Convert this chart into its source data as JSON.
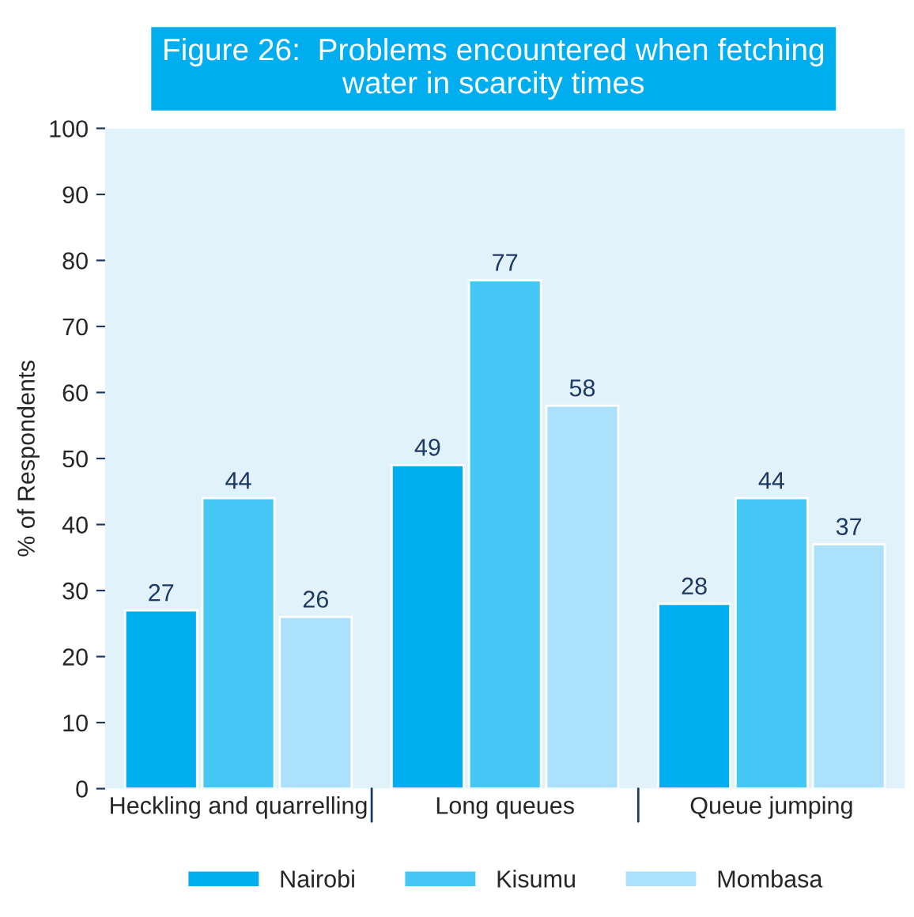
{
  "chart_data": {
    "type": "bar",
    "title": "Figure 26:  Problems encountered when fetching\nwater in scarcity times",
    "ylabel": "% of Respondents",
    "categories": [
      "Heckling and quarrelling",
      "Long queues",
      "Queue jumping"
    ],
    "series": [
      {
        "name": "Nairobi",
        "color": "#00aeef",
        "values": [
          27,
          49,
          28
        ]
      },
      {
        "name": "Kisumu",
        "color": "#45c8f5",
        "values": [
          44,
          77,
          44
        ]
      },
      {
        "name": "Mombasa",
        "color": "#abe1fa",
        "values": [
          26,
          58,
          37
        ]
      }
    ],
    "ylim": [
      0,
      100
    ],
    "yticks": [
      0,
      10,
      20,
      30,
      40,
      50,
      60,
      70,
      80,
      90,
      100
    ],
    "data_labels": true,
    "grid": false,
    "legend": "bottom"
  }
}
